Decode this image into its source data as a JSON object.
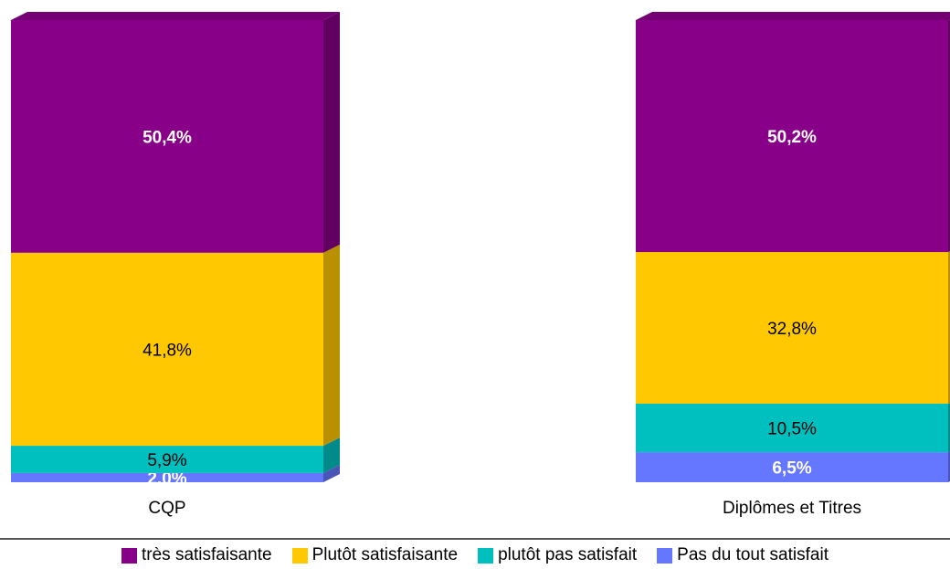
{
  "chart_data": {
    "type": "bar",
    "stacked": true,
    "percent": true,
    "categories": [
      "CQP",
      "Diplômes et Titres"
    ],
    "series": [
      {
        "name": "Pas du tout satisfait",
        "values": [
          2.0,
          6.5
        ],
        "labels": [
          "2,0%",
          "6,5%"
        ],
        "color": "#6677FF",
        "label_bold": true,
        "label_color": "#ffffff"
      },
      {
        "name": "plutôt pas satisfait",
        "values": [
          5.9,
          10.5
        ],
        "labels": [
          "5,9%",
          "10,5%"
        ],
        "color": "#00BFBF",
        "label_bold": false,
        "label_color": "#000000"
      },
      {
        "name": "Plutôt satisfaisante",
        "values": [
          41.8,
          32.8
        ],
        "labels": [
          "41,8%",
          "32,8%"
        ],
        "color": "#FFC800",
        "label_bold": false,
        "label_color": "#000000"
      },
      {
        "name": "très satisfaisante",
        "values": [
          50.4,
          50.2
        ],
        "labels": [
          "50,4%",
          "50,2%"
        ],
        "color": "#880088",
        "label_bold": true,
        "label_color": "#ffffff"
      }
    ],
    "ylim": [
      0,
      100
    ],
    "legend_position": "bottom",
    "legend_order": [
      "très satisfaisante",
      "Plutôt satisfaisante",
      "plutôt pas satisfait",
      "Pas du tout satisfait"
    ],
    "grid": false,
    "style": "3d"
  }
}
